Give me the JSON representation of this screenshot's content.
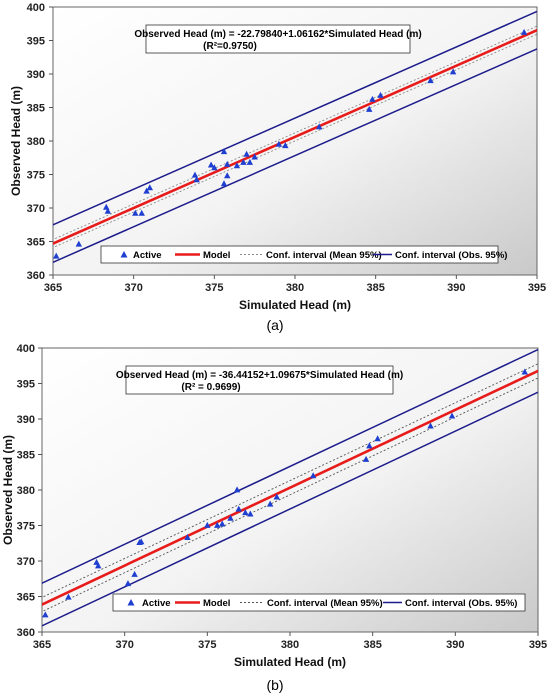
{
  "chart_data": [
    {
      "type": "scatter",
      "panel_label": "(a)",
      "xlabel": "Simulated Head (m)",
      "ylabel": "Observed Head (m)",
      "xlim": [
        365,
        395
      ],
      "ylim": [
        360,
        400
      ],
      "x_ticks": [
        "365",
        "370",
        "375",
        "380",
        "385",
        "390",
        "395"
      ],
      "y_ticks": [
        "360",
        "365",
        "370",
        "375",
        "380",
        "385",
        "390",
        "395",
        "400"
      ],
      "x_tick_values": [
        365,
        370,
        375,
        380,
        385,
        390,
        395
      ],
      "y_tick_values": [
        360,
        365,
        370,
        375,
        380,
        385,
        390,
        395,
        400
      ],
      "equation_line1": "Observed Head (m) = -22.79840+1.06162*Simulated Head (m)",
      "equation_line2": "(R²=0.9750)",
      "grid": false,
      "legend_placement": "bottom",
      "legend": {
        "active": "Active",
        "model": "Model",
        "mean": "Conf. interval (Mean 95%)",
        "obs": "Conf. interval (Obs. 95%)"
      },
      "colors": {
        "points": "#1f3fd1",
        "model": "#e81b1b",
        "mean": "#8a8a8a",
        "obs": "#1c1c8c"
      },
      "model": {
        "intercept": -22.7984,
        "slope": 1.06162
      },
      "mean_ci_halfwidth": 0.6,
      "obs_ci_halfwidth": 2.8,
      "points": [
        [
          365.2,
          362.8
        ],
        [
          366.6,
          364.6
        ],
        [
          368.3,
          370.1
        ],
        [
          368.4,
          369.5
        ],
        [
          370.1,
          369.2
        ],
        [
          370.5,
          369.2
        ],
        [
          370.8,
          372.5
        ],
        [
          371.0,
          373.0
        ],
        [
          373.8,
          374.9
        ],
        [
          373.9,
          374.2
        ],
        [
          374.8,
          376.4
        ],
        [
          375.0,
          376.0
        ],
        [
          375.6,
          373.6
        ],
        [
          375.6,
          378.4
        ],
        [
          375.8,
          374.8
        ],
        [
          375.8,
          376.5
        ],
        [
          376.4,
          376.3
        ],
        [
          376.8,
          376.8
        ],
        [
          377.0,
          378.0
        ],
        [
          377.2,
          376.8
        ],
        [
          377.5,
          377.6
        ],
        [
          379.0,
          379.5
        ],
        [
          379.4,
          379.3
        ],
        [
          381.5,
          382.1
        ],
        [
          384.6,
          384.7
        ],
        [
          384.8,
          386.2
        ],
        [
          385.3,
          386.8
        ],
        [
          388.4,
          389.0
        ],
        [
          389.8,
          390.3
        ],
        [
          394.2,
          396.2
        ]
      ]
    },
    {
      "type": "scatter",
      "panel_label": "(b)",
      "xlabel": "Simulated Head (m)",
      "ylabel": "Observed Head (m)",
      "xlim": [
        365,
        395
      ],
      "ylim": [
        360,
        400
      ],
      "x_ticks": [
        "365",
        "370",
        "375",
        "380",
        "385",
        "390",
        "395"
      ],
      "y_ticks": [
        "360",
        "365",
        "370",
        "375",
        "380",
        "385",
        "390",
        "395",
        "400"
      ],
      "x_tick_values": [
        365,
        370,
        375,
        380,
        385,
        390,
        395
      ],
      "y_tick_values": [
        360,
        365,
        370,
        375,
        380,
        385,
        390,
        395,
        400
      ],
      "equation_line1": "Observed Head (m) = -36.44152+1.09675*Simulated Head (m)",
      "equation_line2": "(R² = 0.9699)",
      "grid": false,
      "legend_placement": "bottom",
      "legend": {
        "active": "Active",
        "model": "Model",
        "mean": "Conf. interval (Mean 95%)",
        "obs": "Conf. interval (Obs. 95%)"
      },
      "colors": {
        "points": "#1f3fd1",
        "model": "#e81b1b",
        "mean": "#555555",
        "obs": "#1c1c8c"
      },
      "model": {
        "intercept": -36.44152,
        "slope": 1.09675
      },
      "mean_ci_halfwidth": 1.0,
      "obs_ci_halfwidth": 3.0,
      "points": [
        [
          365.2,
          362.4
        ],
        [
          366.6,
          364.9
        ],
        [
          368.3,
          369.8
        ],
        [
          368.4,
          369.3
        ],
        [
          370.2,
          366.8
        ],
        [
          370.6,
          368.1
        ],
        [
          370.9,
          372.6
        ],
        [
          371.0,
          372.7
        ],
        [
          373.8,
          373.3
        ],
        [
          375.0,
          375.0
        ],
        [
          375.6,
          375.0
        ],
        [
          375.9,
          375.2
        ],
        [
          376.4,
          376.0
        ],
        [
          376.8,
          380.0
        ],
        [
          376.9,
          377.3
        ],
        [
          377.3,
          376.8
        ],
        [
          377.6,
          376.6
        ],
        [
          378.8,
          378.0
        ],
        [
          379.2,
          379.0
        ],
        [
          381.4,
          382.0
        ],
        [
          384.6,
          384.3
        ],
        [
          384.8,
          386.2
        ],
        [
          385.3,
          387.2
        ],
        [
          388.5,
          389.0
        ],
        [
          389.8,
          390.4
        ],
        [
          394.2,
          396.6
        ]
      ]
    }
  ]
}
